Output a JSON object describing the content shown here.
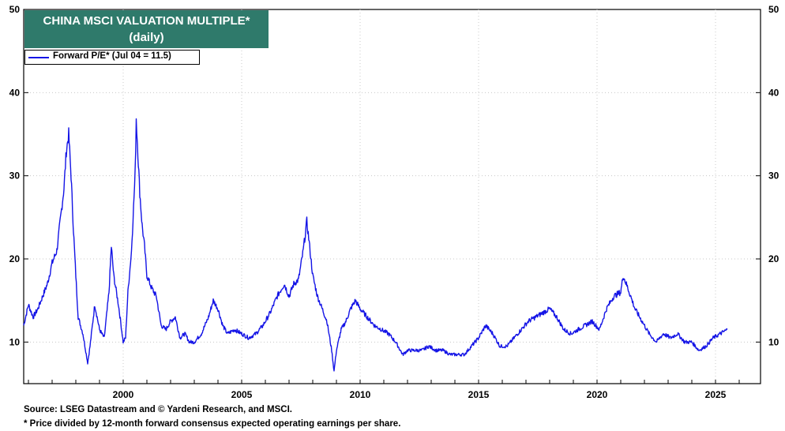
{
  "title_box": {
    "line1": "CHINA MSCI VALUATION MULTIPLE*",
    "line2": "(daily)",
    "bg_color": "#2f7a6b"
  },
  "legend": {
    "label": "Forward P/E* (Jul 04 = 11.5)",
    "color": "#1414e6"
  },
  "footer": {
    "source": "Source: LSEG Datastream and © Yardeni Research, and MSCI.",
    "note": "* Price divided by 12-month forward consensus expected operating earnings per share."
  },
  "chart_data": {
    "type": "line",
    "title": "CHINA MSCI VALUATION MULTIPLE*",
    "subtitle": "(daily)",
    "xlabel": "",
    "ylabel": "",
    "xlim": [
      1995.8,
      2026.9
    ],
    "ylim": [
      5,
      50
    ],
    "x_ticks": [
      2000,
      2005,
      2010,
      2015,
      2020,
      2025
    ],
    "y_ticks": [
      10,
      20,
      30,
      40,
      50
    ],
    "grid": true,
    "legend_position": "top-left",
    "series": [
      {
        "name": "Forward P/E* (Jul 04 = 11.5)",
        "color": "#1414e6",
        "x": [
          1995.8,
          1996.0,
          1996.2,
          1996.4,
          1996.6,
          1996.8,
          1997.0,
          1997.2,
          1997.4,
          1997.5,
          1997.6,
          1997.7,
          1997.8,
          1997.9,
          1998.0,
          1998.1,
          1998.3,
          1998.5,
          1998.6,
          1998.8,
          1999.0,
          1999.2,
          1999.4,
          1999.5,
          1999.6,
          1999.8,
          2000.0,
          2000.1,
          2000.2,
          2000.35,
          2000.5,
          2000.55,
          2000.6,
          2000.7,
          2000.8,
          2000.9,
          2001.0,
          2001.2,
          2001.4,
          2001.6,
          2001.8,
          2002.0,
          2002.2,
          2002.4,
          2002.6,
          2002.8,
          2003.0,
          2003.3,
          2003.6,
          2003.8,
          2004.0,
          2004.2,
          2004.4,
          2004.7,
          2005.0,
          2005.3,
          2005.6,
          2005.9,
          2006.2,
          2006.5,
          2006.8,
          2007.0,
          2007.2,
          2007.4,
          2007.6,
          2007.75,
          2007.85,
          2008.0,
          2008.2,
          2008.4,
          2008.6,
          2008.8,
          2008.9,
          2009.0,
          2009.2,
          2009.4,
          2009.6,
          2009.8,
          2010.0,
          2010.3,
          2010.6,
          2010.9,
          2011.2,
          2011.5,
          2011.8,
          2012.0,
          2012.3,
          2012.6,
          2012.9,
          2013.2,
          2013.5,
          2013.8,
          2014.1,
          2014.4,
          2014.7,
          2015.0,
          2015.3,
          2015.6,
          2015.9,
          2016.2,
          2016.5,
          2016.8,
          2017.1,
          2017.4,
          2017.7,
          2018.0,
          2018.3,
          2018.6,
          2018.9,
          2019.2,
          2019.5,
          2019.8,
          2020.1,
          2020.4,
          2020.7,
          2021.0,
          2021.1,
          2021.3,
          2021.6,
          2021.9,
          2022.2,
          2022.5,
          2022.8,
          2023.1,
          2023.4,
          2023.7,
          2024.0,
          2024.3,
          2024.6,
          2024.9,
          2025.2,
          2025.5
        ],
        "values": [
          12.0,
          14.5,
          13.0,
          14.0,
          15.5,
          17.0,
          19.5,
          21.0,
          26.0,
          28.5,
          33.0,
          35.0,
          30.0,
          23.5,
          18.0,
          13.0,
          11.0,
          7.5,
          9.5,
          14.5,
          11.5,
          10.5,
          16.0,
          21.5,
          18.0,
          14.5,
          10.0,
          10.5,
          16.0,
          21.0,
          30.0,
          37.0,
          34.0,
          28.0,
          24.0,
          21.5,
          18.0,
          16.5,
          15.5,
          12.0,
          11.5,
          12.5,
          13.0,
          10.5,
          11.0,
          10.0,
          10.0,
          11.0,
          13.0,
          15.0,
          14.0,
          12.0,
          11.0,
          11.5,
          11.0,
          10.5,
          11.0,
          12.0,
          13.5,
          15.5,
          17.0,
          15.5,
          17.0,
          17.5,
          21.0,
          24.5,
          22.0,
          18.0,
          15.5,
          14.0,
          12.5,
          9.0,
          6.5,
          9.0,
          11.5,
          12.5,
          14.0,
          15.0,
          14.0,
          13.0,
          12.0,
          11.5,
          11.0,
          10.0,
          8.5,
          9.0,
          9.0,
          9.0,
          9.5,
          9.0,
          9.0,
          8.5,
          8.5,
          8.5,
          9.5,
          10.5,
          12.0,
          11.0,
          9.5,
          9.5,
          10.5,
          11.5,
          12.5,
          13.0,
          13.5,
          14.0,
          13.0,
          11.5,
          11.0,
          11.5,
          12.0,
          12.5,
          11.5,
          14.0,
          15.5,
          16.0,
          18.0,
          16.5,
          14.0,
          12.5,
          11.0,
          10.0,
          11.0,
          10.5,
          11.0,
          10.0,
          10.0,
          9.0,
          9.5,
          10.5,
          11.0,
          11.5
        ]
      }
    ]
  }
}
